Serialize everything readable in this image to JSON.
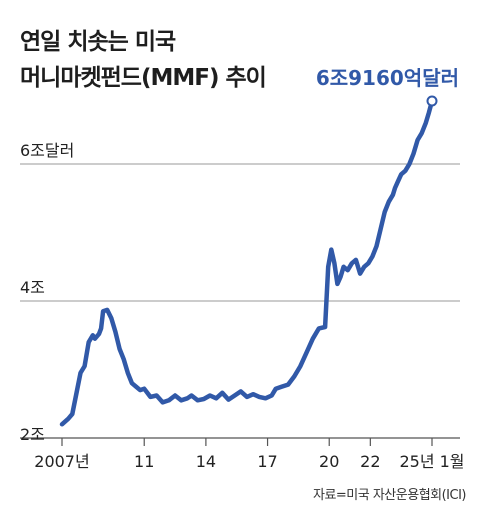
{
  "header": {
    "title_line1": "연일 치솟는 미국",
    "title_line2": "머니마켓펀드(MMF) 추이"
  },
  "source": "자료=미국 자산운용협회(ICI)",
  "colors": {
    "line": "#3159a8",
    "grid": "#999999",
    "axis": "#555555"
  },
  "chart_data": {
    "type": "line",
    "title": "연일 치솟는 미국 머니마켓펀드(MMF) 추이",
    "xlabel": "",
    "ylabel": "",
    "x_ticks": [
      {
        "value": 2007,
        "label": "2007년"
      },
      {
        "value": 2011,
        "label": "11"
      },
      {
        "value": 2014,
        "label": "14"
      },
      {
        "value": 2017,
        "label": "17"
      },
      {
        "value": 2020,
        "label": "20"
      },
      {
        "value": 2022,
        "label": "22"
      },
      {
        "value": 2025,
        "label": "25년 1월"
      }
    ],
    "y_ticks": [
      {
        "value": 2,
        "label": "2조"
      },
      {
        "value": 4,
        "label": "4조"
      },
      {
        "value": 6,
        "label": "6조달러"
      }
    ],
    "xlim": [
      2007,
      2025.6
    ],
    "ylim": [
      2,
      7
    ],
    "grid": true,
    "end_annotation": "6조9160억달러",
    "series": [
      {
        "x": [
          2007.0,
          2007.3,
          2007.5,
          2007.7,
          2007.9,
          2008.1,
          2008.3,
          2008.5,
          2008.6,
          2008.8,
          2008.9,
          2009.0,
          2009.2,
          2009.4,
          2009.6,
          2009.8,
          2010.0,
          2010.2,
          2010.4,
          2010.6,
          2010.8,
          2011.0,
          2011.3,
          2011.6,
          2011.9,
          2012.2,
          2012.5,
          2012.8,
          2013.1,
          2013.3,
          2013.6,
          2013.9,
          2014.2,
          2014.5,
          2014.8,
          2015.1,
          2015.4,
          2015.7,
          2016.0,
          2016.3,
          2016.6,
          2016.9,
          2017.2,
          2017.4,
          2017.7,
          2018.0,
          2018.3,
          2018.6,
          2018.9,
          2019.2,
          2019.5,
          2019.8,
          2019.95,
          2020.1,
          2020.25,
          2020.4,
          2020.55,
          2020.7,
          2020.9,
          2021.1,
          2021.3,
          2021.5,
          2021.7,
          2021.9,
          2022.1,
          2022.3,
          2022.5,
          2022.7,
          2022.9,
          2023.1,
          2023.2,
          2023.35,
          2023.5,
          2023.7,
          2023.9,
          2024.1,
          2024.3,
          2024.5,
          2024.7,
          2024.85,
          2025.0
        ],
        "y": [
          2.2,
          2.28,
          2.35,
          2.65,
          2.95,
          3.05,
          3.4,
          3.5,
          3.45,
          3.52,
          3.6,
          3.85,
          3.87,
          3.75,
          3.55,
          3.3,
          3.15,
          2.95,
          2.8,
          2.75,
          2.7,
          2.72,
          2.6,
          2.62,
          2.52,
          2.55,
          2.62,
          2.55,
          2.58,
          2.62,
          2.55,
          2.57,
          2.62,
          2.58,
          2.66,
          2.56,
          2.62,
          2.68,
          2.6,
          2.64,
          2.6,
          2.58,
          2.62,
          2.72,
          2.75,
          2.78,
          2.9,
          3.05,
          3.25,
          3.45,
          3.6,
          3.62,
          4.5,
          4.75,
          4.55,
          4.25,
          4.35,
          4.5,
          4.45,
          4.55,
          4.6,
          4.4,
          4.5,
          4.55,
          4.65,
          4.8,
          5.05,
          5.3,
          5.45,
          5.55,
          5.65,
          5.75,
          5.85,
          5.9,
          6.0,
          6.15,
          6.35,
          6.45,
          6.6,
          6.75,
          6.92
        ]
      }
    ]
  }
}
